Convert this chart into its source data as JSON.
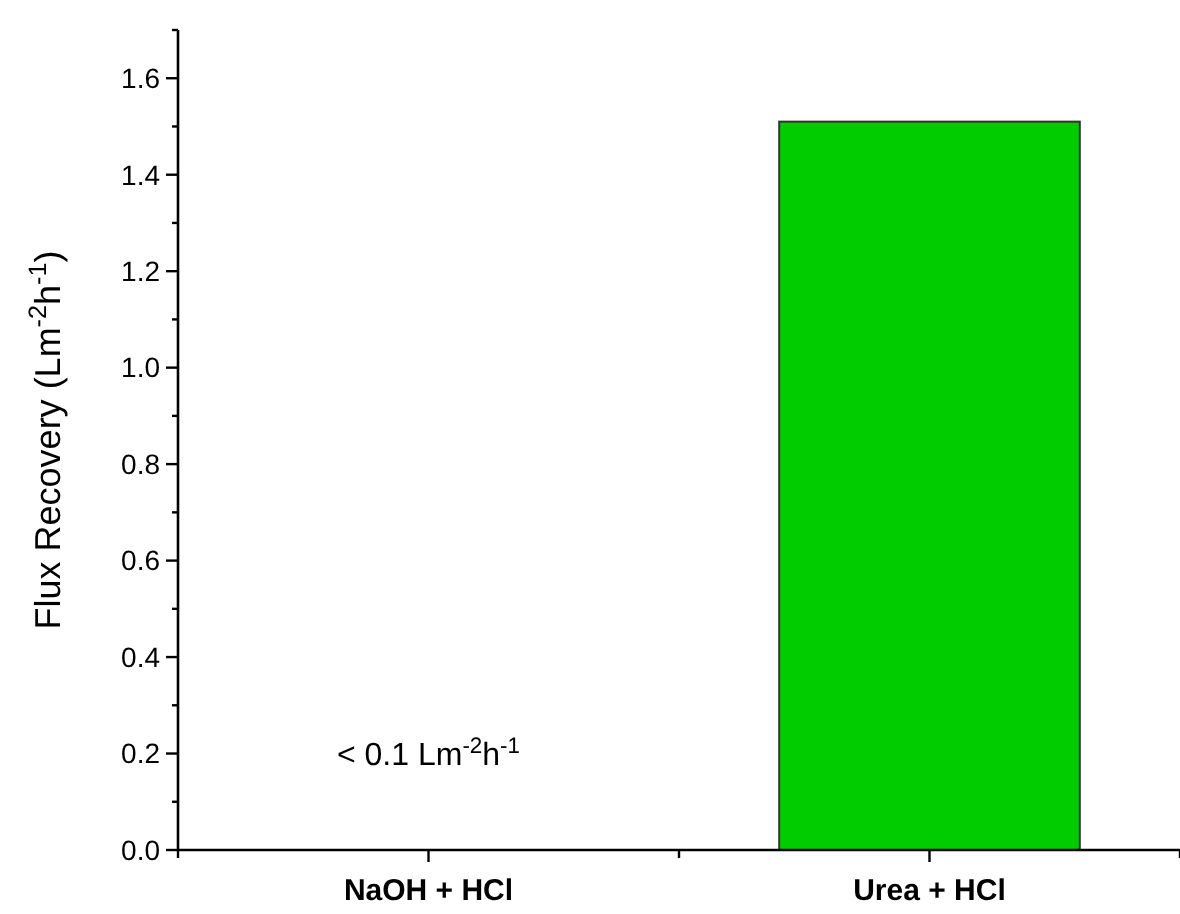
{
  "chart_data": {
    "type": "bar",
    "ylabel": "Flux Recovery (Lm$^{-2}$h$^{-1}$)",
    "categories": [
      "NaOH + HCl",
      "Urea + HCl"
    ],
    "values": [
      null,
      1.51
    ],
    "color": "#00cc00",
    "ylim": [
      0,
      1.7
    ],
    "yticks": [
      {
        "value": 0,
        "label": "0.0"
      },
      {
        "value": 0.1,
        "label": null
      },
      {
        "value": 0.2,
        "label": "0.2"
      },
      {
        "value": 0.3,
        "label": null
      },
      {
        "value": 0.4,
        "label": "0.4"
      },
      {
        "value": 0.5,
        "label": null
      },
      {
        "value": 0.6,
        "label": "0.6"
      },
      {
        "value": 0.7,
        "label": null
      },
      {
        "value": 0.8,
        "label": "0.8"
      },
      {
        "value": 0.9,
        "label": null
      },
      {
        "value": 1,
        "label": "1.0"
      },
      {
        "value": 1.1,
        "label": null
      },
      {
        "value": 1.2,
        "label": "1.2"
      },
      {
        "value": 1.3,
        "label": null
      },
      {
        "value": 1.4,
        "label": "1.4"
      },
      {
        "value": 1.5,
        "label": null
      },
      {
        "value": 1.6,
        "label": "1.6"
      },
      {
        "value": 1.7,
        "label": null
      }
    ],
    "annotations": [
      "< 0.1 Lm$^{-2}$h$^{-1}$"
    ],
    "grid": false
  }
}
